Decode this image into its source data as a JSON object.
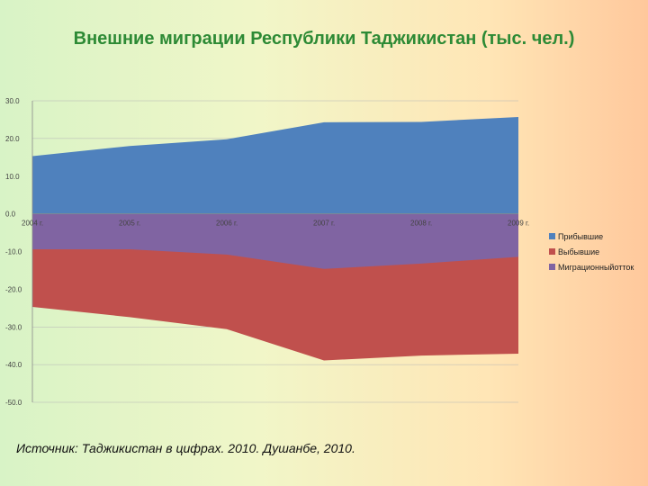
{
  "slide": {
    "title": "Внешние миграции Республики Таджикистан (тыс. чел.)",
    "source": "Источник: Таджикистан в цифрах. 2010. Душанбе, 2010."
  },
  "chart_data": {
    "type": "area",
    "title": "",
    "categories": [
      "2004 г.",
      "2005 г.",
      "2006 г.",
      "2007 г.",
      "2008 г.",
      "2009 г."
    ],
    "ylim": [
      -50,
      30
    ],
    "yticks": [
      30,
      20,
      10,
      0,
      -10,
      -20,
      -30,
      -40,
      -50
    ],
    "ytick_labels": [
      "30.0",
      "20.0",
      "10.0",
      "0.0",
      "-10.0",
      "-20.0",
      "-30.0",
      "-40.0",
      "-50.0"
    ],
    "grid": true,
    "legend_position": "right",
    "series": [
      {
        "name": "Прибывшие",
        "color": "#4f81bd",
        "values": [
          15.3,
          18.0,
          19.8,
          24.3,
          24.4,
          25.7
        ]
      },
      {
        "name": "Выбывшие",
        "color": "#c0504d",
        "values": [
          -24.7,
          -27.4,
          -30.6,
          -38.9,
          -37.6,
          -37.1
        ]
      },
      {
        "name": "Миграционныйотток",
        "color": "#8064a2",
        "values": [
          -9.4,
          -9.4,
          -10.8,
          -14.6,
          -13.2,
          -11.4
        ]
      }
    ]
  }
}
